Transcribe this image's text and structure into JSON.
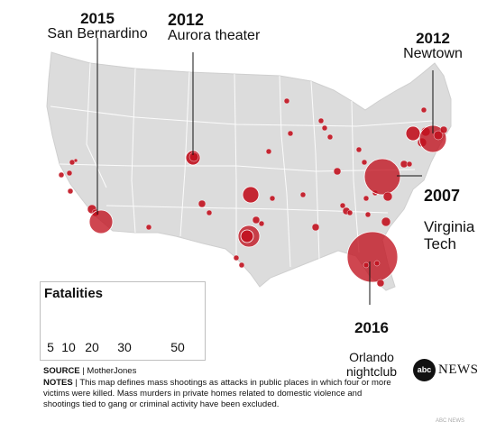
{
  "annotations": [
    {
      "year": "2015",
      "place": "San Bernardino"
    },
    {
      "year": "2012",
      "place": "Aurora theater"
    },
    {
      "year": "2012",
      "place": "Newtown"
    },
    {
      "year": "2007",
      "place": "Virginia\nTech"
    },
    {
      "year": "2016",
      "place": "Orlando\nnightclub"
    }
  ],
  "legend": {
    "title": "Fatalities",
    "items": [
      {
        "label": "5",
        "value": 5
      },
      {
        "label": "10",
        "value": 10
      },
      {
        "label": "20",
        "value": 20
      },
      {
        "label": "30",
        "value": 30
      },
      {
        "label": "50",
        "value": 50
      }
    ]
  },
  "source": {
    "label": "SOURCE",
    "text": "MotherJones"
  },
  "notes": {
    "label": "NOTES",
    "text": "This map defines mass shootings as attacks in public places in which four or more victims were killed. Mass murders in private homes related to domestic violence and shootings tied to gang or criminal activity have been excluded."
  },
  "logo": {
    "mark": "abc",
    "text": "NEWS"
  },
  "credit": "ABC NEWS",
  "colors": {
    "marker": "#c1121f",
    "land": "#dcdcdc",
    "border": "#ffffff"
  }
}
